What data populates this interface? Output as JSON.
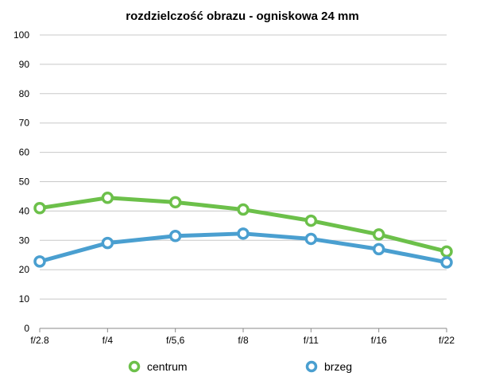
{
  "chart_data": {
    "type": "line",
    "title": "rozdzielczość obrazu - ogniskowa 24 mm",
    "xlabel": "",
    "ylabel": "",
    "categories": [
      "f/2.8",
      "f/4",
      "f/5,6",
      "f/8",
      "f/11",
      "f/16",
      "f/22"
    ],
    "ylim": [
      0,
      100
    ],
    "yticks": [
      0,
      10,
      20,
      30,
      40,
      50,
      60,
      70,
      80,
      90,
      100
    ],
    "grid": true,
    "legend_position": "bottom",
    "series": [
      {
        "name": "centrum",
        "color": "#6cc04a",
        "values": [
          41,
          44.5,
          43,
          40.5,
          36.7,
          32,
          26.2
        ]
      },
      {
        "name": "brzeg",
        "color": "#4a9fd0",
        "values": [
          22.8,
          29.1,
          31.5,
          32.3,
          30.5,
          27,
          22.5
        ]
      }
    ]
  }
}
